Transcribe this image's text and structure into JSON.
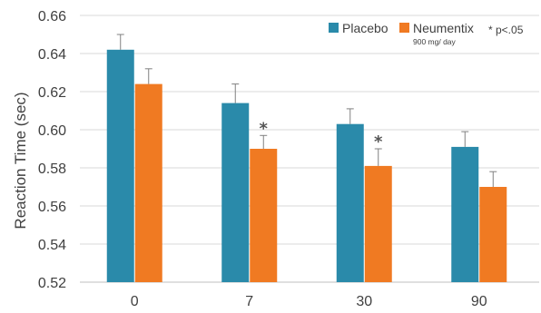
{
  "chart_data": {
    "type": "bar",
    "title": "",
    "xlabel": "",
    "ylabel": "Reaction Time (sec)",
    "ylim": [
      0.52,
      0.66
    ],
    "yticks": [
      "0.52",
      "0.54",
      "0.56",
      "0.58",
      "0.60",
      "0.62",
      "0.64",
      "0.66"
    ],
    "grid": true,
    "legend_position": "top-right",
    "categories": [
      "0",
      "7",
      "30",
      "90"
    ],
    "series": [
      {
        "name": "Placebo",
        "color": "#2a8aaa",
        "values": [
          0.642,
          0.614,
          0.603,
          0.591
        ],
        "error": [
          0.008,
          0.01,
          0.008,
          0.008
        ],
        "significant": [
          false,
          false,
          false,
          false
        ]
      },
      {
        "name": "Neumentix",
        "subtitle": "900 mg/ day",
        "color": "#f07a22",
        "values": [
          0.624,
          0.59,
          0.581,
          0.57
        ],
        "error": [
          0.008,
          0.007,
          0.009,
          0.008
        ],
        "significant": [
          false,
          true,
          true,
          false
        ]
      }
    ],
    "significance_marker": "*",
    "significance_note": "* p<.05"
  }
}
